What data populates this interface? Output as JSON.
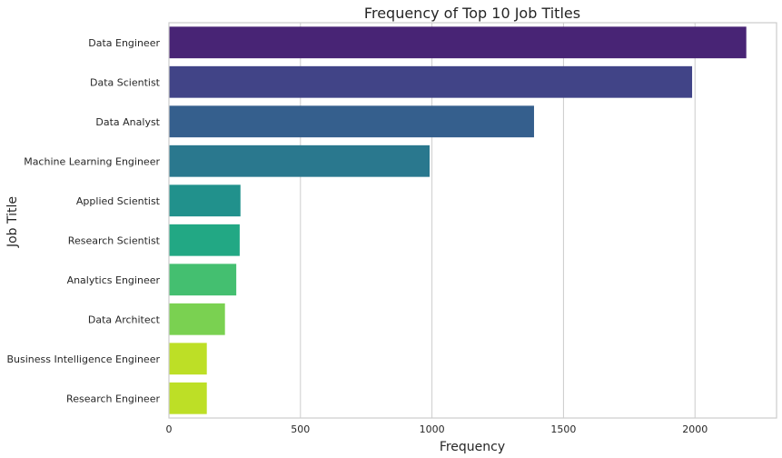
{
  "chart_data": {
    "type": "bar",
    "orientation": "horizontal",
    "title": "Frequency of Top 10 Job Titles",
    "xlabel": "Frequency",
    "ylabel": "Job Title",
    "xlim": [
      0,
      2310
    ],
    "x_ticks": [
      0,
      500,
      1000,
      1500,
      2000
    ],
    "grid": "vertical",
    "categories": [
      "Data Engineer",
      "Data Scientist",
      "Data Analyst",
      "Machine Learning Engineer",
      "Applied Scientist",
      "Research Scientist",
      "Analytics Engineer",
      "Data Architect",
      "Business Intelligence Engineer",
      "Research Engineer"
    ],
    "values": [
      2195,
      1989,
      1388,
      991,
      272,
      269,
      256,
      213,
      144,
      144
    ],
    "colors": [
      "#482475",
      "#414487",
      "#355f8d",
      "#2a788e",
      "#21918c",
      "#22a884",
      "#44bf70",
      "#7ad151",
      "#bddf26",
      "#bddf26"
    ]
  }
}
